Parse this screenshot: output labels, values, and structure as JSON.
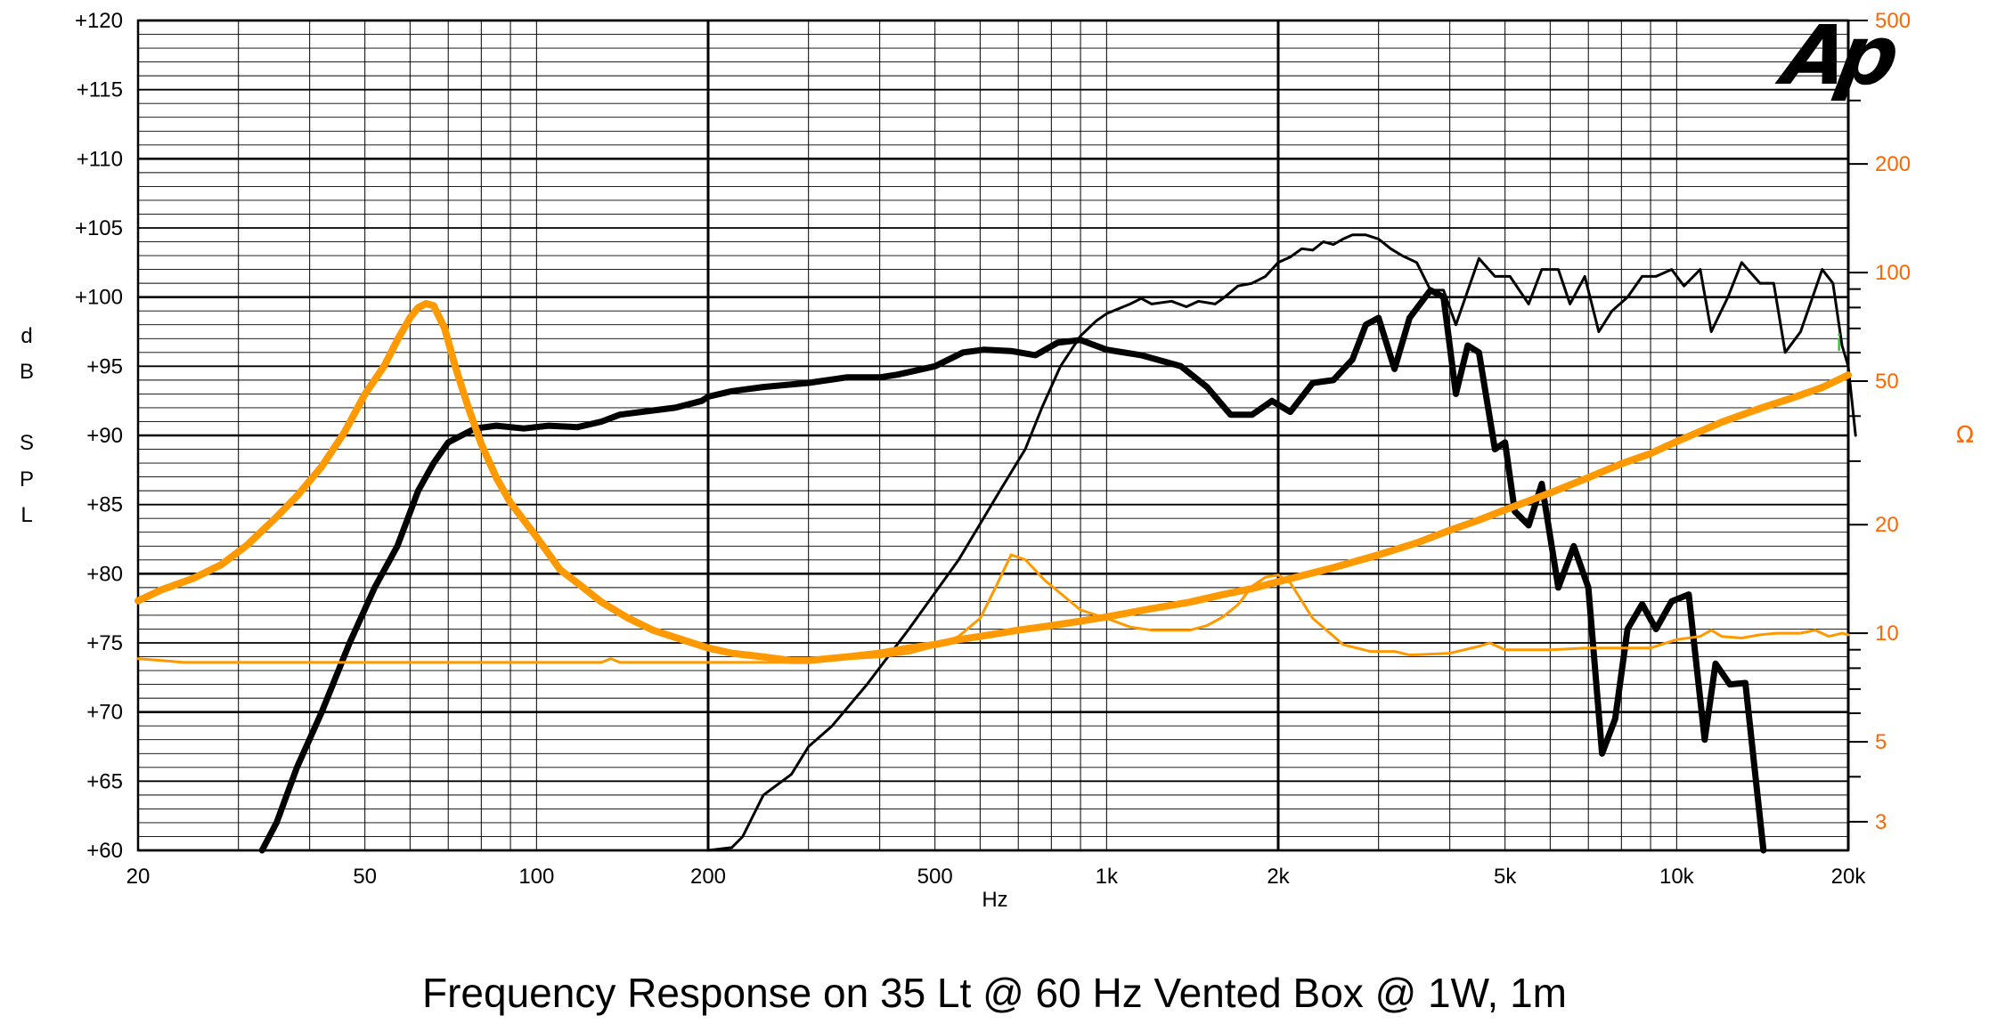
{
  "caption": "Frequency Response on 35 Lt @ 60 Hz Vented Box @ 1W, 1m",
  "chart_data": {
    "type": "line",
    "xscale": "log",
    "xlim": [
      20,
      20000
    ],
    "ylim": [
      60,
      120
    ],
    "y2lim": [
      2.5,
      500
    ],
    "y2scale": "log",
    "xlabel": "Hz",
    "ylabel_letters": [
      "d",
      "B",
      "S",
      "P",
      "L"
    ],
    "y2label": "Ω",
    "logo": "Ap",
    "marker": "i",
    "x_ticks": [
      {
        "v": 20,
        "label": "20"
      },
      {
        "v": 50,
        "label": "50"
      },
      {
        "v": 100,
        "label": "100"
      },
      {
        "v": 200,
        "label": "200"
      },
      {
        "v": 500,
        "label": "500"
      },
      {
        "v": 1000,
        "label": "1k"
      },
      {
        "v": 2000,
        "label": "2k"
      },
      {
        "v": 5000,
        "label": "5k"
      },
      {
        "v": 10000,
        "label": "10k"
      },
      {
        "v": 20000,
        "label": "20k"
      }
    ],
    "y_ticks": [
      {
        "v": 120,
        "label": "+120"
      },
      {
        "v": 115,
        "label": "+115"
      },
      {
        "v": 110,
        "label": "+110"
      },
      {
        "v": 105,
        "label": "+105"
      },
      {
        "v": 100,
        "label": "+100"
      },
      {
        "v": 95,
        "label": "+95"
      },
      {
        "v": 90,
        "label": "+90"
      },
      {
        "v": 85,
        "label": "+85"
      },
      {
        "v": 80,
        "label": "+80"
      },
      {
        "v": 75,
        "label": "+75"
      },
      {
        "v": 70,
        "label": "+70"
      },
      {
        "v": 65,
        "label": "+65"
      },
      {
        "v": 60,
        "label": "+60"
      }
    ],
    "y2_ticks": [
      {
        "v": 500,
        "label": "500"
      },
      {
        "v": 200,
        "label": "200"
      },
      {
        "v": 100,
        "label": "100"
      },
      {
        "v": 50,
        "label": "50"
      },
      {
        "v": 20,
        "label": "20"
      },
      {
        "v": 10,
        "label": "10"
      },
      {
        "v": 5,
        "label": "5"
      },
      {
        "v": 3,
        "label": "3"
      }
    ],
    "colors": {
      "spl": "#000000",
      "impedance": "#ff9900",
      "axis_right": "#ff6600",
      "marker": "#22cc22"
    },
    "series": [
      {
        "axis": "left",
        "color": "#000000",
        "width": 7,
        "points": [
          [
            33,
            60
          ],
          [
            35,
            62
          ],
          [
            38,
            66
          ],
          [
            42,
            70
          ],
          [
            47,
            75
          ],
          [
            52,
            79
          ],
          [
            57,
            82
          ],
          [
            62,
            86
          ],
          [
            66,
            88
          ],
          [
            70,
            89.5
          ],
          [
            78,
            90.5
          ],
          [
            85,
            90.7
          ],
          [
            95,
            90.5
          ],
          [
            105,
            90.7
          ],
          [
            118,
            90.6
          ],
          [
            130,
            91
          ],
          [
            140,
            91.5
          ],
          [
            160,
            91.8
          ],
          [
            175,
            92
          ],
          [
            195,
            92.5
          ],
          [
            200,
            92.8
          ],
          [
            220,
            93.2
          ],
          [
            250,
            93.5
          ],
          [
            300,
            93.8
          ],
          [
            350,
            94.2
          ],
          [
            400,
            94.2
          ],
          [
            430,
            94.4
          ],
          [
            500,
            95
          ],
          [
            560,
            96
          ],
          [
            610,
            96.2
          ],
          [
            680,
            96.1
          ],
          [
            750,
            95.8
          ],
          [
            820,
            96.7
          ],
          [
            900,
            96.9
          ],
          [
            1000,
            96.2
          ],
          [
            1150,
            95.8
          ],
          [
            1350,
            95
          ],
          [
            1500,
            93.5
          ],
          [
            1650,
            91.5
          ],
          [
            1800,
            91.5
          ],
          [
            1950,
            92.5
          ],
          [
            2100,
            91.7
          ],
          [
            2300,
            93.8
          ],
          [
            2500,
            94
          ],
          [
            2700,
            95.5
          ],
          [
            2850,
            98
          ],
          [
            3000,
            98.5
          ],
          [
            3200,
            94.8
          ],
          [
            3400,
            98.5
          ],
          [
            3700,
            100.5
          ],
          [
            3900,
            100
          ],
          [
            4100,
            93
          ],
          [
            4300,
            96.5
          ],
          [
            4500,
            96
          ],
          [
            4800,
            89
          ],
          [
            5000,
            89.5
          ],
          [
            5200,
            84.5
          ],
          [
            5500,
            83.5
          ],
          [
            5800,
            86.5
          ],
          [
            6200,
            79
          ],
          [
            6600,
            82
          ],
          [
            7000,
            79
          ],
          [
            7400,
            67
          ],
          [
            7800,
            69.5
          ],
          [
            8200,
            76
          ],
          [
            8700,
            77.8
          ],
          [
            9200,
            76
          ],
          [
            9800,
            78
          ],
          [
            10500,
            78.5
          ],
          [
            11200,
            68
          ],
          [
            11700,
            73.5
          ],
          [
            12400,
            72
          ],
          [
            13200,
            72.1
          ],
          [
            14200,
            60
          ]
        ]
      },
      {
        "axis": "left",
        "color": "#000000",
        "width": 3,
        "points": [
          [
            200,
            60
          ],
          [
            220,
            60.2
          ],
          [
            230,
            61
          ],
          [
            250,
            64
          ],
          [
            280,
            65.5
          ],
          [
            300,
            67.5
          ],
          [
            330,
            69
          ],
          [
            380,
            72
          ],
          [
            450,
            76
          ],
          [
            550,
            81
          ],
          [
            650,
            86
          ],
          [
            720,
            89
          ],
          [
            770,
            92
          ],
          [
            830,
            95
          ],
          [
            900,
            97.2
          ],
          [
            960,
            98.3
          ],
          [
            1000,
            98.8
          ],
          [
            1100,
            99.5
          ],
          [
            1150,
            99.9
          ],
          [
            1200,
            99.5
          ],
          [
            1300,
            99.7
          ],
          [
            1380,
            99.3
          ],
          [
            1450,
            99.7
          ],
          [
            1550,
            99.5
          ],
          [
            1600,
            99.9
          ],
          [
            1700,
            100.8
          ],
          [
            1800,
            101
          ],
          [
            1900,
            101.5
          ],
          [
            2000,
            102.5
          ],
          [
            2100,
            102.9
          ],
          [
            2200,
            103.5
          ],
          [
            2300,
            103.4
          ],
          [
            2400,
            104
          ],
          [
            2500,
            103.8
          ],
          [
            2600,
            104.2
          ],
          [
            2700,
            104.5
          ],
          [
            2850,
            104.5
          ],
          [
            3000,
            104.2
          ],
          [
            3150,
            103.5
          ],
          [
            3300,
            103
          ],
          [
            3500,
            102.5
          ],
          [
            3700,
            100.5
          ],
          [
            3900,
            100.5
          ],
          [
            4100,
            98
          ],
          [
            4500,
            102.8
          ],
          [
            4800,
            101.5
          ],
          [
            5100,
            101.5
          ],
          [
            5500,
            99.5
          ],
          [
            5800,
            102
          ],
          [
            6200,
            102
          ],
          [
            6500,
            99.5
          ],
          [
            6900,
            101.5
          ],
          [
            7300,
            97.5
          ],
          [
            7700,
            99
          ],
          [
            8200,
            100
          ],
          [
            8700,
            101.5
          ],
          [
            9200,
            101.5
          ],
          [
            9800,
            102
          ],
          [
            10300,
            100.8
          ],
          [
            11000,
            102
          ],
          [
            11500,
            97.5
          ],
          [
            12300,
            100
          ],
          [
            13000,
            102.5
          ],
          [
            14000,
            101
          ],
          [
            14800,
            101
          ],
          [
            15500,
            96
          ],
          [
            16500,
            97.5
          ],
          [
            18000,
            102
          ],
          [
            18800,
            101
          ],
          [
            19500,
            96.5
          ],
          [
            20000,
            95
          ],
          [
            20600,
            90
          ]
        ]
      },
      {
        "axis": "right",
        "color": "#ff9900",
        "width": 8,
        "points": [
          [
            20,
            12.3
          ],
          [
            22,
            13.2
          ],
          [
            25,
            14.2
          ],
          [
            28,
            15.5
          ],
          [
            31,
            17.5
          ],
          [
            35,
            21
          ],
          [
            38,
            24
          ],
          [
            42,
            29
          ],
          [
            46,
            36
          ],
          [
            50,
            46
          ],
          [
            54,
            55
          ],
          [
            57,
            65
          ],
          [
            60,
            75
          ],
          [
            62,
            80
          ],
          [
            64,
            82
          ],
          [
            66,
            81
          ],
          [
            69,
            70
          ],
          [
            72,
            55
          ],
          [
            76,
            42
          ],
          [
            80,
            33.5
          ],
          [
            85,
            27
          ],
          [
            90,
            23
          ],
          [
            100,
            18.5
          ],
          [
            110,
            15
          ],
          [
            120,
            13.5
          ],
          [
            130,
            12.2
          ],
          [
            145,
            11
          ],
          [
            160,
            10.2
          ],
          [
            180,
            9.6
          ],
          [
            200,
            9.1
          ],
          [
            220,
            8.8
          ],
          [
            250,
            8.6
          ],
          [
            280,
            8.4
          ],
          [
            300,
            8.4
          ],
          [
            350,
            8.6
          ],
          [
            400,
            8.8
          ],
          [
            450,
            9.1
          ],
          [
            500,
            9.3
          ],
          [
            550,
            9.6
          ],
          [
            600,
            9.8
          ],
          [
            700,
            10.2
          ],
          [
            800,
            10.5
          ],
          [
            900,
            10.8
          ],
          [
            1000,
            11.1
          ],
          [
            1200,
            11.7
          ],
          [
            1400,
            12.2
          ],
          [
            1600,
            12.8
          ],
          [
            1800,
            13.3
          ],
          [
            2000,
            13.9
          ],
          [
            2500,
            15.2
          ],
          [
            3000,
            16.5
          ],
          [
            3500,
            17.8
          ],
          [
            4000,
            19.3
          ],
          [
            4500,
            20.6
          ],
          [
            5000,
            22
          ],
          [
            6000,
            24.5
          ],
          [
            7000,
            27
          ],
          [
            8000,
            29.5
          ],
          [
            9000,
            31.5
          ],
          [
            10000,
            34
          ],
          [
            12000,
            38.5
          ],
          [
            14000,
            42
          ],
          [
            16000,
            45
          ],
          [
            18000,
            48
          ],
          [
            20000,
            52
          ]
        ]
      },
      {
        "axis": "right",
        "color": "#ff9900",
        "width": 3,
        "points": [
          [
            20,
            8.5
          ],
          [
            22,
            8.4
          ],
          [
            24,
            8.3
          ],
          [
            40,
            8.3
          ],
          [
            100,
            8.3
          ],
          [
            130,
            8.3
          ],
          [
            135,
            8.5
          ],
          [
            140,
            8.3
          ],
          [
            200,
            8.3
          ],
          [
            300,
            8.3
          ],
          [
            350,
            8.5
          ],
          [
            400,
            8.6
          ],
          [
            450,
            8.8
          ],
          [
            500,
            9.2
          ],
          [
            550,
            9.8
          ],
          [
            600,
            11
          ],
          [
            640,
            13.5
          ],
          [
            680,
            16.5
          ],
          [
            720,
            16
          ],
          [
            780,
            14
          ],
          [
            850,
            12.5
          ],
          [
            900,
            11.6
          ],
          [
            1000,
            11
          ],
          [
            1100,
            10.4
          ],
          [
            1200,
            10.2
          ],
          [
            1300,
            10.2
          ],
          [
            1400,
            10.2
          ],
          [
            1500,
            10.5
          ],
          [
            1600,
            11.1
          ],
          [
            1700,
            12
          ],
          [
            1800,
            13.5
          ],
          [
            1900,
            14.3
          ],
          [
            2000,
            14.5
          ],
          [
            2100,
            13.8
          ],
          [
            2300,
            11
          ],
          [
            2600,
            9.3
          ],
          [
            2900,
            8.9
          ],
          [
            3200,
            8.9
          ],
          [
            3400,
            8.7
          ],
          [
            4000,
            8.8
          ],
          [
            4500,
            9.2
          ],
          [
            4700,
            9.4
          ],
          [
            5000,
            9
          ],
          [
            6000,
            9
          ],
          [
            7000,
            9.1
          ],
          [
            8000,
            9.1
          ],
          [
            9000,
            9.1
          ],
          [
            10000,
            9.6
          ],
          [
            11000,
            9.8
          ],
          [
            11500,
            10.2
          ],
          [
            12000,
            9.8
          ],
          [
            13000,
            9.7
          ],
          [
            14000,
            9.9
          ],
          [
            15000,
            10
          ],
          [
            16500,
            10
          ],
          [
            17500,
            10.2
          ],
          [
            18500,
            9.8
          ],
          [
            19500,
            10
          ],
          [
            20000,
            9.9
          ]
        ]
      }
    ]
  }
}
